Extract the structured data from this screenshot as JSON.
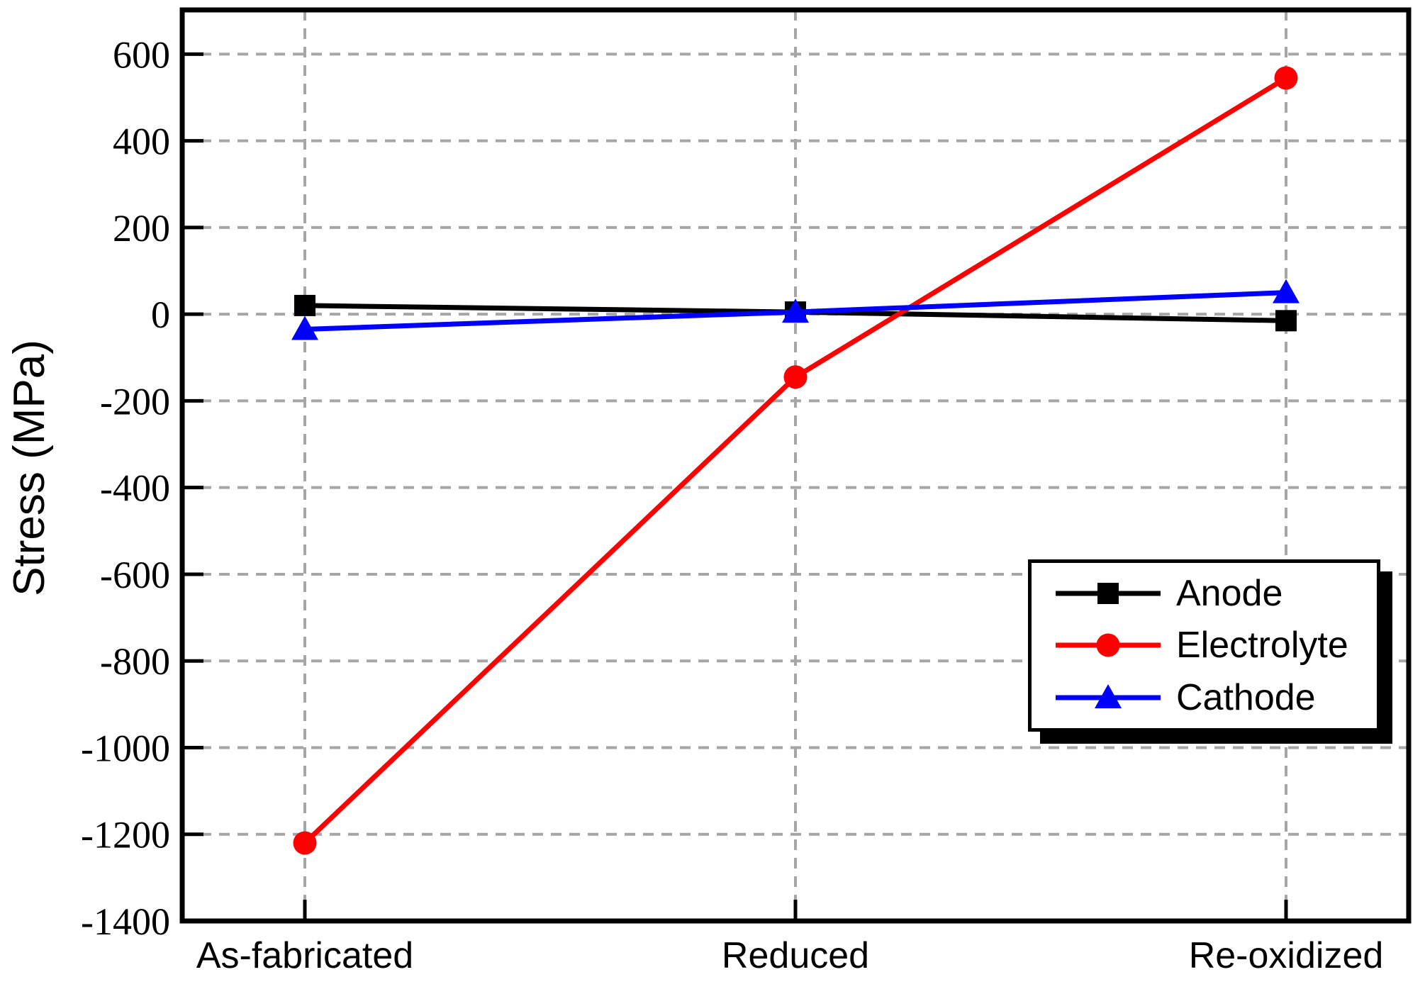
{
  "chart_data": {
    "type": "line",
    "categories": [
      "As-fabricated",
      "Reduced",
      "Re-oxidized"
    ],
    "series": [
      {
        "name": "Anode",
        "color": "#000000",
        "marker": "square",
        "values": [
          20,
          5,
          -15
        ]
      },
      {
        "name": "Electrolyte",
        "color": "#ff0000",
        "marker": "circle",
        "values": [
          -1220,
          -145,
          545
        ]
      },
      {
        "name": "Cathode",
        "color": "#0000ff",
        "marker": "triangle",
        "values": [
          -35,
          5,
          50
        ]
      }
    ],
    "title": "",
    "xlabel": "",
    "ylabel": "Stress (MPa)",
    "ylim": [
      -1400,
      700
    ],
    "yticks": [
      600,
      400,
      200,
      0,
      -200,
      -400,
      -600,
      -800,
      -1000,
      -1200,
      -1400
    ],
    "grid": "dashed",
    "grid_color": "#a6a6a6",
    "axis_color": "#000000",
    "background": "#ffffff",
    "legend_position": "lower-right"
  },
  "legend": {
    "items": [
      "Anode",
      "Electrolyte",
      "Cathode"
    ]
  }
}
